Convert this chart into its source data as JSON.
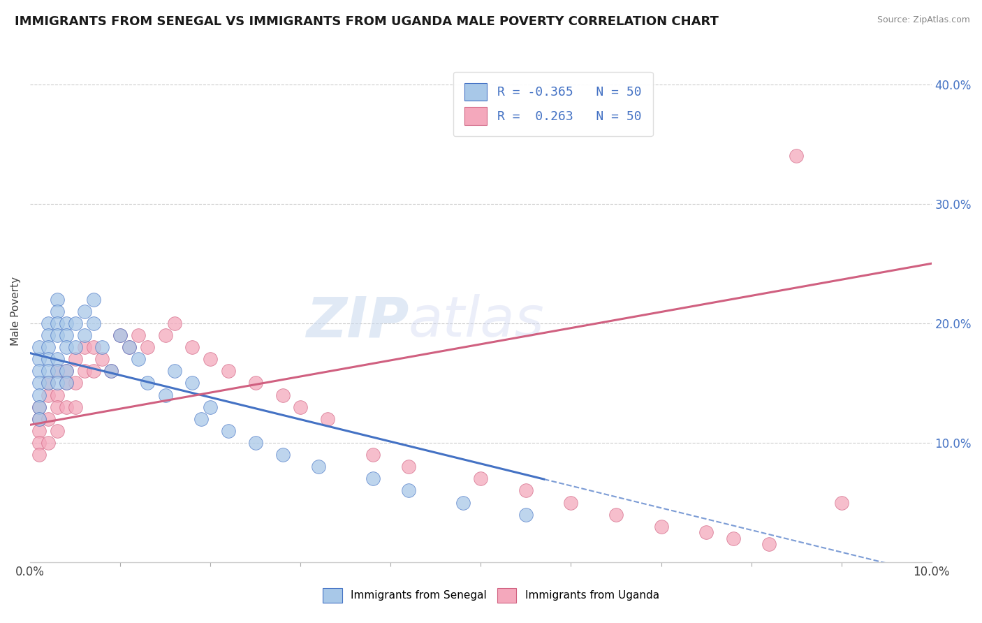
{
  "title": "IMMIGRANTS FROM SENEGAL VS IMMIGRANTS FROM UGANDA MALE POVERTY CORRELATION CHART",
  "source": "Source: ZipAtlas.com",
  "ylabel": "Male Poverty",
  "R_senegal": -0.365,
  "N_senegal": 50,
  "R_uganda": 0.263,
  "N_uganda": 50,
  "color_senegal": "#a8c8e8",
  "color_uganda": "#f4a8bc",
  "color_senegal_line": "#4472c4",
  "color_uganda_line": "#d06080",
  "legend_label_senegal": "Immigrants from Senegal",
  "legend_label_uganda": "Immigrants from Uganda",
  "senegal_x": [
    0.001,
    0.001,
    0.001,
    0.001,
    0.001,
    0.001,
    0.001,
    0.002,
    0.002,
    0.002,
    0.002,
    0.002,
    0.002,
    0.003,
    0.003,
    0.003,
    0.003,
    0.003,
    0.003,
    0.003,
    0.004,
    0.004,
    0.004,
    0.004,
    0.004,
    0.005,
    0.005,
    0.006,
    0.006,
    0.007,
    0.007,
    0.008,
    0.009,
    0.01,
    0.011,
    0.012,
    0.013,
    0.015,
    0.016,
    0.018,
    0.019,
    0.02,
    0.022,
    0.025,
    0.028,
    0.032,
    0.038,
    0.042,
    0.048,
    0.055
  ],
  "senegal_y": [
    0.17,
    0.18,
    0.16,
    0.15,
    0.14,
    0.13,
    0.12,
    0.2,
    0.19,
    0.18,
    0.17,
    0.16,
    0.15,
    0.22,
    0.21,
    0.2,
    0.19,
    0.17,
    0.16,
    0.15,
    0.2,
    0.19,
    0.18,
    0.16,
    0.15,
    0.2,
    0.18,
    0.21,
    0.19,
    0.22,
    0.2,
    0.18,
    0.16,
    0.19,
    0.18,
    0.17,
    0.15,
    0.14,
    0.16,
    0.15,
    0.12,
    0.13,
    0.11,
    0.1,
    0.09,
    0.08,
    0.07,
    0.06,
    0.05,
    0.04
  ],
  "uganda_x": [
    0.001,
    0.001,
    0.001,
    0.001,
    0.001,
    0.002,
    0.002,
    0.002,
    0.002,
    0.003,
    0.003,
    0.003,
    0.003,
    0.004,
    0.004,
    0.004,
    0.005,
    0.005,
    0.005,
    0.006,
    0.006,
    0.007,
    0.007,
    0.008,
    0.009,
    0.01,
    0.011,
    0.012,
    0.013,
    0.015,
    0.016,
    0.018,
    0.02,
    0.022,
    0.025,
    0.028,
    0.03,
    0.033,
    0.038,
    0.042,
    0.05,
    0.055,
    0.06,
    0.065,
    0.07,
    0.075,
    0.078,
    0.082,
    0.085,
    0.09
  ],
  "uganda_y": [
    0.13,
    0.12,
    0.11,
    0.1,
    0.09,
    0.15,
    0.14,
    0.12,
    0.1,
    0.16,
    0.14,
    0.13,
    0.11,
    0.16,
    0.15,
    0.13,
    0.17,
    0.15,
    0.13,
    0.18,
    0.16,
    0.18,
    0.16,
    0.17,
    0.16,
    0.19,
    0.18,
    0.19,
    0.18,
    0.19,
    0.2,
    0.18,
    0.17,
    0.16,
    0.15,
    0.14,
    0.13,
    0.12,
    0.09,
    0.08,
    0.07,
    0.06,
    0.05,
    0.04,
    0.03,
    0.025,
    0.02,
    0.015,
    0.34,
    0.05
  ],
  "xlim": [
    0,
    0.1
  ],
  "ylim": [
    0,
    0.42
  ],
  "yticks": [
    0.1,
    0.2,
    0.3,
    0.4
  ],
  "ytick_labels": [
    "10.0%",
    "20.0%",
    "30.0%",
    "40.0%"
  ]
}
